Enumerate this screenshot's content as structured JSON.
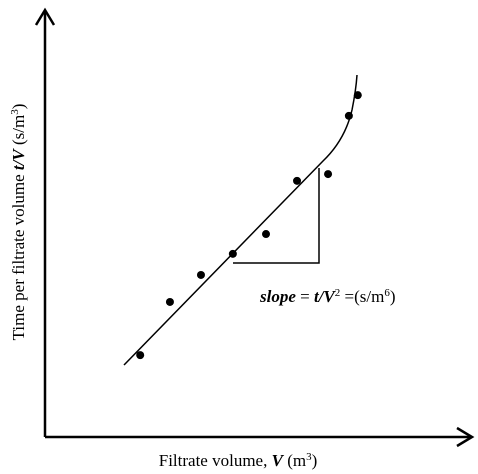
{
  "chart_data": {
    "type": "scatter",
    "ylabel": [
      "Time per filtrate volume ",
      "t/V",
      "  (s/m",
      "3",
      ")"
    ],
    "xlabel": [
      "Filtrate volume, ",
      "V",
      " (m",
      "3",
      ")"
    ],
    "annotation": [
      "slope",
      " = ",
      "t/V",
      "2",
      " =(s/m",
      "6",
      ")"
    ],
    "x": [
      2.24,
      2.94,
      3.67,
      4.42,
      5.2,
      5.93,
      6.66,
      7.15,
      7.36
    ],
    "values": [
      1.94,
      3.2,
      3.84,
      4.34,
      4.81,
      6.07,
      6.23,
      7.61,
      8.1
    ],
    "xlim": [
      0,
      10
    ],
    "ylim": [
      0,
      10
    ],
    "color": "#000000"
  }
}
